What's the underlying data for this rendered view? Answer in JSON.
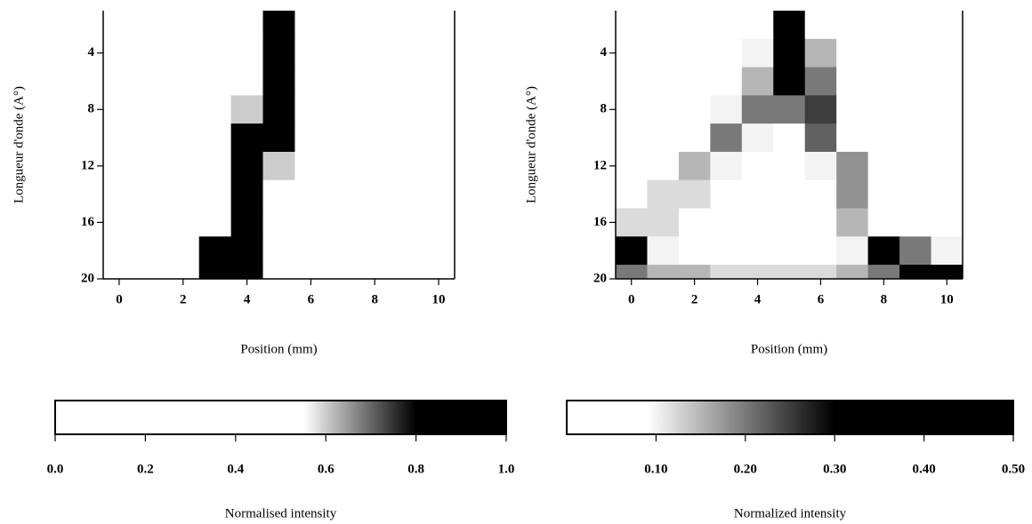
{
  "chart_data": [
    {
      "type": "heatmap",
      "xlabel": "Position (mm)",
      "ylabel": "Longueur d'onde (A°)",
      "x": [
        0,
        1,
        2,
        3,
        4,
        5,
        6,
        7,
        8,
        9,
        10
      ],
      "y": [
        2,
        4,
        6,
        8,
        10,
        12,
        14,
        16,
        18,
        20
      ],
      "values": [
        [
          0,
          0,
          0,
          0,
          0,
          1,
          0,
          0,
          0,
          0,
          0
        ],
        [
          0,
          0,
          0,
          0,
          0,
          1,
          0.3,
          0,
          0,
          0,
          0
        ],
        [
          0,
          0,
          0,
          0,
          0,
          1,
          0.4,
          0,
          0,
          0,
          0
        ],
        [
          0,
          0,
          0,
          0,
          0.6,
          1,
          0.2,
          0,
          0,
          0,
          0
        ],
        [
          0,
          0,
          0,
          0,
          1,
          1,
          0.2,
          0,
          0,
          0,
          0
        ],
        [
          0,
          0,
          0,
          0,
          1,
          0.6,
          0,
          0,
          0,
          0,
          0
        ],
        [
          0,
          0,
          0,
          0,
          1,
          0.3,
          0,
          0,
          0,
          0,
          0
        ],
        [
          0,
          0,
          0,
          0.5,
          1,
          0,
          0,
          0,
          0,
          0,
          0
        ],
        [
          0,
          0,
          0,
          1,
          1,
          0,
          0,
          0,
          0,
          0,
          0
        ],
        [
          0,
          0,
          0,
          1,
          0.8,
          0,
          0,
          0,
          0,
          0,
          0
        ]
      ],
      "xlim": [
        -0.5,
        10.5
      ],
      "ylim": [
        20,
        1
      ],
      "xticks": [
        0,
        2,
        4,
        6,
        8,
        10
      ],
      "yticks": [
        4,
        8,
        12,
        16,
        20
      ],
      "colormap": [
        [
          0.55,
          "#ffffff"
        ],
        [
          0.8,
          "#000000"
        ]
      ],
      "colorbar": {
        "label": "Normalised intensity",
        "lim": [
          0,
          1
        ],
        "ticks": [
          {
            "value": 0,
            "label": "0.0"
          },
          0.2,
          0.4,
          0.6,
          0.8,
          {
            "value": 1,
            "label": "1.0"
          }
        ]
      }
    },
    {
      "type": "heatmap",
      "xlabel": "Position (mm)",
      "ylabel": "Longueur d'onde (A°)",
      "x": [
        0,
        1,
        2,
        3,
        4,
        5,
        6,
        7,
        8,
        9,
        10
      ],
      "y": [
        2,
        4,
        6,
        8,
        10,
        12,
        14,
        16,
        18,
        20
      ],
      "values": [
        [
          0,
          0,
          0,
          0,
          0,
          0.35,
          0,
          0,
          0,
          0,
          0
        ],
        [
          0,
          0,
          0,
          0,
          0.1,
          0.4,
          0.15,
          0,
          0,
          0,
          0
        ],
        [
          0,
          0,
          0,
          0,
          0.15,
          0.3,
          0.2,
          0,
          0,
          0,
          0
        ],
        [
          0,
          0,
          0,
          0.1,
          0.2,
          0.2,
          0.25,
          0,
          0,
          0,
          0
        ],
        [
          0,
          0,
          0,
          0.2,
          0.1,
          0,
          0.22,
          0.05,
          0,
          0,
          0
        ],
        [
          0,
          0,
          0.15,
          0.1,
          0,
          0,
          0.1,
          0.18,
          0,
          0,
          0
        ],
        [
          0,
          0.12,
          0.12,
          0,
          0,
          0,
          0,
          0.18,
          0,
          0,
          0
        ],
        [
          0.12,
          0.12,
          0,
          0,
          0,
          0,
          0,
          0.15,
          0.05,
          0,
          0
        ],
        [
          0.3,
          0.1,
          0,
          0,
          0,
          0,
          0,
          0.1,
          0.35,
          0.2,
          0.1
        ],
        [
          0.2,
          0.15,
          0.15,
          0.12,
          0.12,
          0.12,
          0.12,
          0.15,
          0.2,
          0.3,
          0.4
        ]
      ],
      "xlim": [
        -0.5,
        10.5
      ],
      "ylim": [
        20,
        1
      ],
      "xticks": [
        0,
        2,
        4,
        6,
        8,
        10
      ],
      "yticks": [
        4,
        8,
        12,
        16,
        20
      ],
      "colormap": [
        [
          0.09,
          "#ffffff"
        ],
        [
          0.3,
          "#000000"
        ]
      ],
      "colorbar": {
        "label": "Normalized intensity",
        "lim": [
          0,
          0.5
        ],
        "ticks": [
          {
            "value": 0.1,
            "label": "0.10"
          },
          {
            "value": 0.2,
            "label": "0.20"
          },
          {
            "value": 0.3,
            "label": "0.30"
          },
          {
            "value": 0.4,
            "label": "0.40"
          },
          {
            "value": 0.5,
            "label": "0.50"
          }
        ]
      }
    }
  ]
}
